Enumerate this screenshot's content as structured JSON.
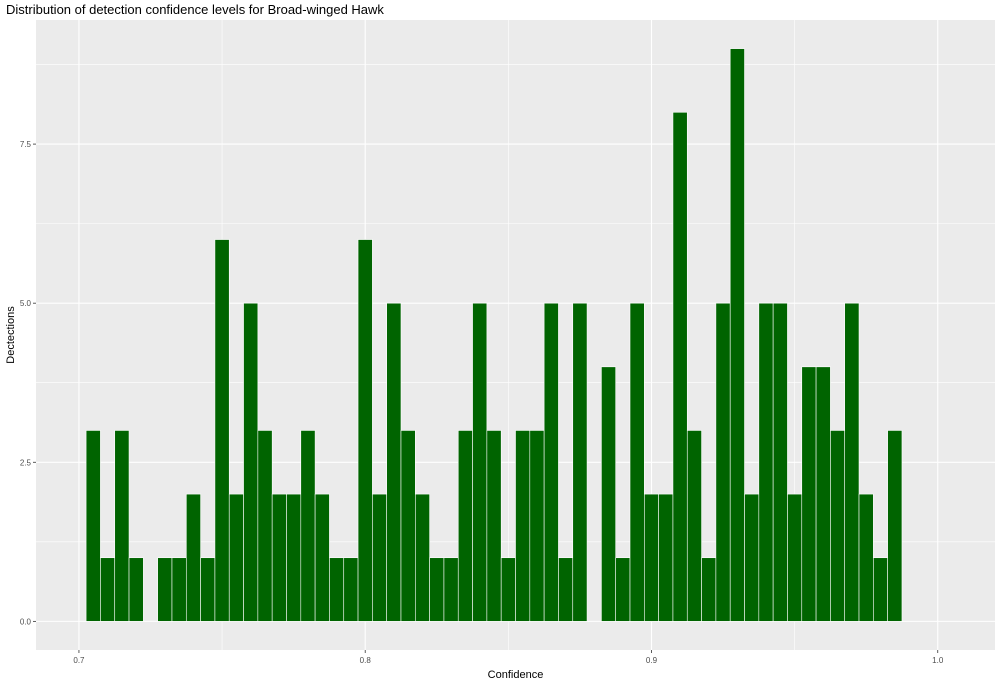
{
  "chart_data": {
    "type": "bar",
    "title": "Distribution of detection confidence levels for Broad-winged Hawk",
    "xlabel": "Confidence",
    "ylabel": "Dectections",
    "xlim": [
      0.685,
      1.02
    ],
    "ylim": [
      -0.45,
      9.45
    ],
    "bin_width": 0.005,
    "x_ticks": [
      0.7,
      0.8,
      0.9,
      1.0
    ],
    "x_tick_labels": [
      "0.7",
      "0.8",
      "0.9",
      "1.0"
    ],
    "y_ticks": [
      0,
      2.5,
      5,
      7.5
    ],
    "y_tick_labels": [
      "0.0",
      "2.5",
      "5.0",
      "7.5"
    ],
    "grid": true,
    "bar_color": "#006400",
    "panel_color": "#ebebeb",
    "x": [
      0.705,
      0.71,
      0.715,
      0.72,
      0.73,
      0.735,
      0.74,
      0.745,
      0.75,
      0.755,
      0.76,
      0.765,
      0.77,
      0.775,
      0.78,
      0.785,
      0.79,
      0.795,
      0.8,
      0.805,
      0.81,
      0.815,
      0.82,
      0.825,
      0.83,
      0.835,
      0.84,
      0.845,
      0.85,
      0.855,
      0.86,
      0.865,
      0.87,
      0.875,
      0.885,
      0.89,
      0.895,
      0.9,
      0.905,
      0.91,
      0.915,
      0.92,
      0.925,
      0.93,
      0.935,
      0.94,
      0.945,
      0.95,
      0.955,
      0.96,
      0.965,
      0.97,
      0.975,
      0.98,
      0.985
    ],
    "values": [
      3,
      1,
      3,
      1,
      1,
      1,
      2,
      1,
      6,
      2,
      5,
      3,
      2,
      2,
      3,
      2,
      1,
      1,
      6,
      2,
      5,
      3,
      2,
      1,
      1,
      3,
      5,
      3,
      1,
      3,
      3,
      5,
      1,
      5,
      4,
      1,
      5,
      2,
      2,
      8,
      3,
      1,
      5,
      9,
      2,
      5,
      5,
      2,
      4,
      4,
      3,
      5,
      2,
      1,
      3
    ]
  }
}
